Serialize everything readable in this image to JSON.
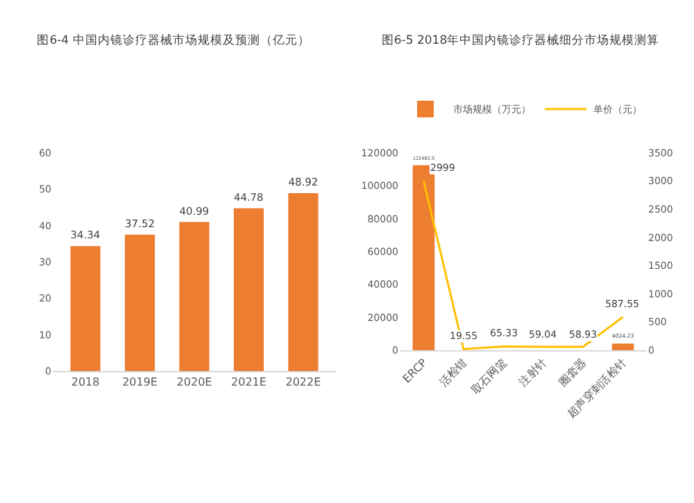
{
  "chart_data": [
    {
      "type": "bar",
      "title": "图6-4 中国内镜诊疗器械市场规模及预测（亿元）",
      "categories": [
        "2018",
        "2019E",
        "2020E",
        "2021E",
        "2022E"
      ],
      "values": [
        34.34,
        37.52,
        40.99,
        44.78,
        48.92
      ],
      "color": "#ed7d31",
      "ylim": [
        0,
        60
      ],
      "yticks": [
        0,
        10,
        20,
        30,
        40,
        50,
        60
      ],
      "data_labels": true,
      "grid": false,
      "legend": false
    },
    {
      "type": "bar",
      "title": "图6-5 2018年中国内镜诊疗器械细分市场规模测算",
      "categories": [
        "ERCP",
        "活检钳",
        "取石网篮",
        "注射针",
        "圈套器",
        "超声穿刺活检针"
      ],
      "series": [
        {
          "name": "市场规模（万元）",
          "type": "bar",
          "color": "#ed7d31",
          "values": [
            112462.5,
            null,
            null,
            null,
            null,
            4024.23
          ],
          "value_labels": [
            "112462.5",
            null,
            null,
            null,
            null,
            "4024.23"
          ]
        },
        {
          "name": "单价（元）",
          "type": "line",
          "axis": "y2",
          "color": "#ffc000",
          "values": [
            2999,
            19.55,
            65.33,
            59.04,
            58.93,
            587.55
          ],
          "value_labels": [
            "2999",
            "19.55",
            "65.33",
            "59.04",
            "58.93",
            "587.55"
          ]
        }
      ],
      "ylim": [
        0,
        120000
      ],
      "yticks": [
        0,
        20000,
        40000,
        60000,
        80000,
        100000,
        120000
      ],
      "y2lim": [
        0,
        3500
      ],
      "y2ticks": [
        0,
        500,
        1000,
        1500,
        2000,
        2500,
        3000,
        3500
      ],
      "grid": false,
      "legend": "top"
    }
  ]
}
